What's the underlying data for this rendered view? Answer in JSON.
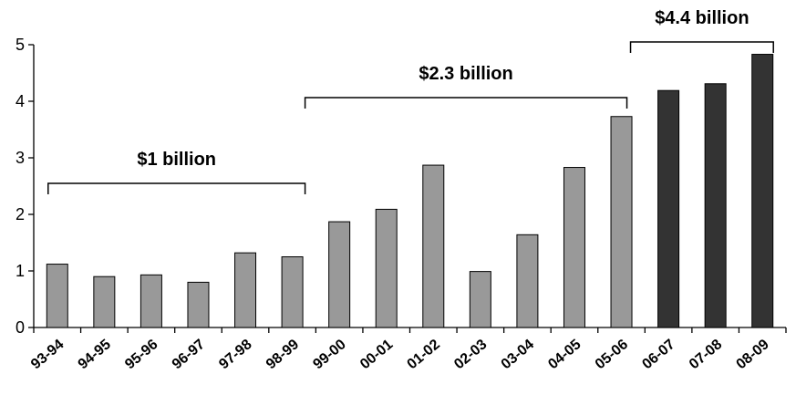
{
  "colors": {
    "light_bar": "#999999",
    "dark_bar": "#333333"
  },
  "chart_data": {
    "type": "bar",
    "categories": [
      "93-94",
      "94-95",
      "95-96",
      "96-97",
      "97-98",
      "98-99",
      "99-00",
      "00-01",
      "01-02",
      "02-03",
      "03-04",
      "04-05",
      "05-06",
      "06-07",
      "07-08",
      "08-09"
    ],
    "values": [
      1.12,
      0.9,
      0.93,
      0.8,
      1.32,
      1.25,
      1.87,
      2.09,
      2.87,
      0.99,
      1.64,
      2.83,
      3.73,
      4.19,
      4.31,
      4.83
    ],
    "bar_colors": [
      "light",
      "light",
      "light",
      "light",
      "light",
      "light",
      "light",
      "light",
      "light",
      "light",
      "light",
      "light",
      "light",
      "dark",
      "dark",
      "dark"
    ],
    "ylim": [
      0,
      5
    ],
    "yticks": [
      "0",
      "1",
      "2",
      "3",
      "4",
      "5"
    ],
    "title": "",
    "xlabel": "",
    "ylabel": "",
    "grid": false,
    "annotations": [
      {
        "label": "$1 billion",
        "from_category": "93-94",
        "to_category": "98-99"
      },
      {
        "label": "$2.3 billion",
        "from_category": "98-99",
        "to_category": "05-06"
      },
      {
        "label": "$4.4 billion",
        "from_category": "05-06",
        "to_category": "08-09"
      }
    ]
  }
}
